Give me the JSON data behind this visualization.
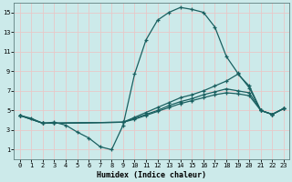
{
  "xlabel": "Humidex (Indice chaleur)",
  "bg_color": "#cceaea",
  "grid_color": "#b0d8d8",
  "line_color": "#1a6060",
  "xlim": [
    -0.5,
    23.5
  ],
  "ylim": [
    0,
    16
  ],
  "xticks": [
    0,
    1,
    2,
    3,
    4,
    5,
    6,
    7,
    8,
    9,
    10,
    11,
    12,
    13,
    14,
    15,
    16,
    17,
    18,
    19,
    20,
    21,
    22,
    23
  ],
  "yticks": [
    1,
    3,
    5,
    7,
    9,
    11,
    13,
    15
  ],
  "curves": [
    {
      "x": [
        0,
        1,
        2,
        3,
        4,
        5,
        6,
        7,
        8,
        9,
        10,
        11,
        12,
        13,
        14,
        15,
        16,
        17,
        18,
        19,
        20,
        21,
        22,
        23
      ],
      "y": [
        4.5,
        4.2,
        3.7,
        3.8,
        3.5,
        2.8,
        2.2,
        1.3,
        1.0,
        3.5,
        8.7,
        12.2,
        14.2,
        15.0,
        15.5,
        15.3,
        15.0,
        13.5,
        10.5,
        8.8,
        7.3,
        5.0,
        4.6,
        5.2
      ]
    },
    {
      "x": [
        0,
        2,
        3,
        9,
        10,
        11,
        12,
        13,
        14,
        15,
        16,
        17,
        18,
        19,
        20,
        21,
        22,
        23
      ],
      "y": [
        4.5,
        3.7,
        3.7,
        3.8,
        4.3,
        4.8,
        5.3,
        5.8,
        6.3,
        6.6,
        7.0,
        7.5,
        8.0,
        8.7,
        7.5,
        5.0,
        4.6,
        5.2
      ]
    },
    {
      "x": [
        0,
        2,
        3,
        9,
        10,
        11,
        12,
        13,
        14,
        15,
        16,
        17,
        18,
        19,
        20,
        21,
        22,
        23
      ],
      "y": [
        4.5,
        3.7,
        3.7,
        3.8,
        4.2,
        4.6,
        5.0,
        5.5,
        5.9,
        6.2,
        6.6,
        6.9,
        7.2,
        7.0,
        6.8,
        5.0,
        4.6,
        5.2
      ]
    },
    {
      "x": [
        0,
        2,
        3,
        9,
        10,
        11,
        12,
        13,
        14,
        15,
        16,
        17,
        18,
        19,
        20,
        21,
        22,
        23
      ],
      "y": [
        4.5,
        3.7,
        3.7,
        3.8,
        4.1,
        4.5,
        4.9,
        5.3,
        5.7,
        6.0,
        6.3,
        6.6,
        6.8,
        6.7,
        6.5,
        5.0,
        4.6,
        5.2
      ]
    }
  ]
}
